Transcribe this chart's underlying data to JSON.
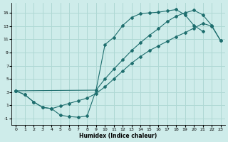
{
  "background_color": "#ceecea",
  "grid_color": "#afd8d4",
  "line_color": "#1e6e6e",
  "xlabel": "Humidex (Indice chaleur)",
  "xlim": [
    -0.5,
    23.5
  ],
  "ylim": [
    -2.0,
    16.5
  ],
  "xticks": [
    0,
    1,
    2,
    3,
    4,
    5,
    6,
    7,
    8,
    9,
    10,
    11,
    12,
    13,
    14,
    15,
    16,
    17,
    18,
    19,
    20,
    21,
    22,
    23
  ],
  "yticks": [
    -1,
    1,
    3,
    5,
    7,
    9,
    11,
    13,
    15
  ],
  "curve1_x": [
    0,
    1,
    2,
    3,
    4,
    5,
    6,
    7,
    8,
    9,
    10,
    11,
    12,
    13,
    14,
    15,
    16,
    17,
    18,
    19,
    20,
    21
  ],
  "curve1_y": [
    3.2,
    2.6,
    1.5,
    0.7,
    0.5,
    -0.5,
    -0.7,
    -0.8,
    -0.6,
    3.3,
    10.2,
    11.3,
    13.1,
    14.3,
    14.9,
    15.0,
    15.1,
    15.3,
    15.5,
    14.7,
    13.1,
    12.2
  ],
  "curve2_x": [
    0,
    1,
    2,
    3,
    4,
    5,
    6,
    7,
    8,
    9,
    10,
    11,
    12,
    13,
    14,
    15,
    16,
    17,
    18,
    19,
    20,
    21,
    22,
    23
  ],
  "curve2_y": [
    3.2,
    2.6,
    1.5,
    0.7,
    0.5,
    0.9,
    1.3,
    1.7,
    2.1,
    2.8,
    3.8,
    5.0,
    6.2,
    7.4,
    8.4,
    9.3,
    10.0,
    10.7,
    11.4,
    12.0,
    12.7,
    13.4,
    13.0,
    10.8
  ],
  "curve3_x": [
    0,
    9,
    10,
    11,
    12,
    13,
    14,
    15,
    16,
    17,
    18,
    19,
    20,
    21,
    22,
    23
  ],
  "curve3_y": [
    3.2,
    3.3,
    5.0,
    6.5,
    7.9,
    9.3,
    10.5,
    11.6,
    12.6,
    13.7,
    14.5,
    15.0,
    15.4,
    14.7,
    13.1,
    10.8
  ]
}
